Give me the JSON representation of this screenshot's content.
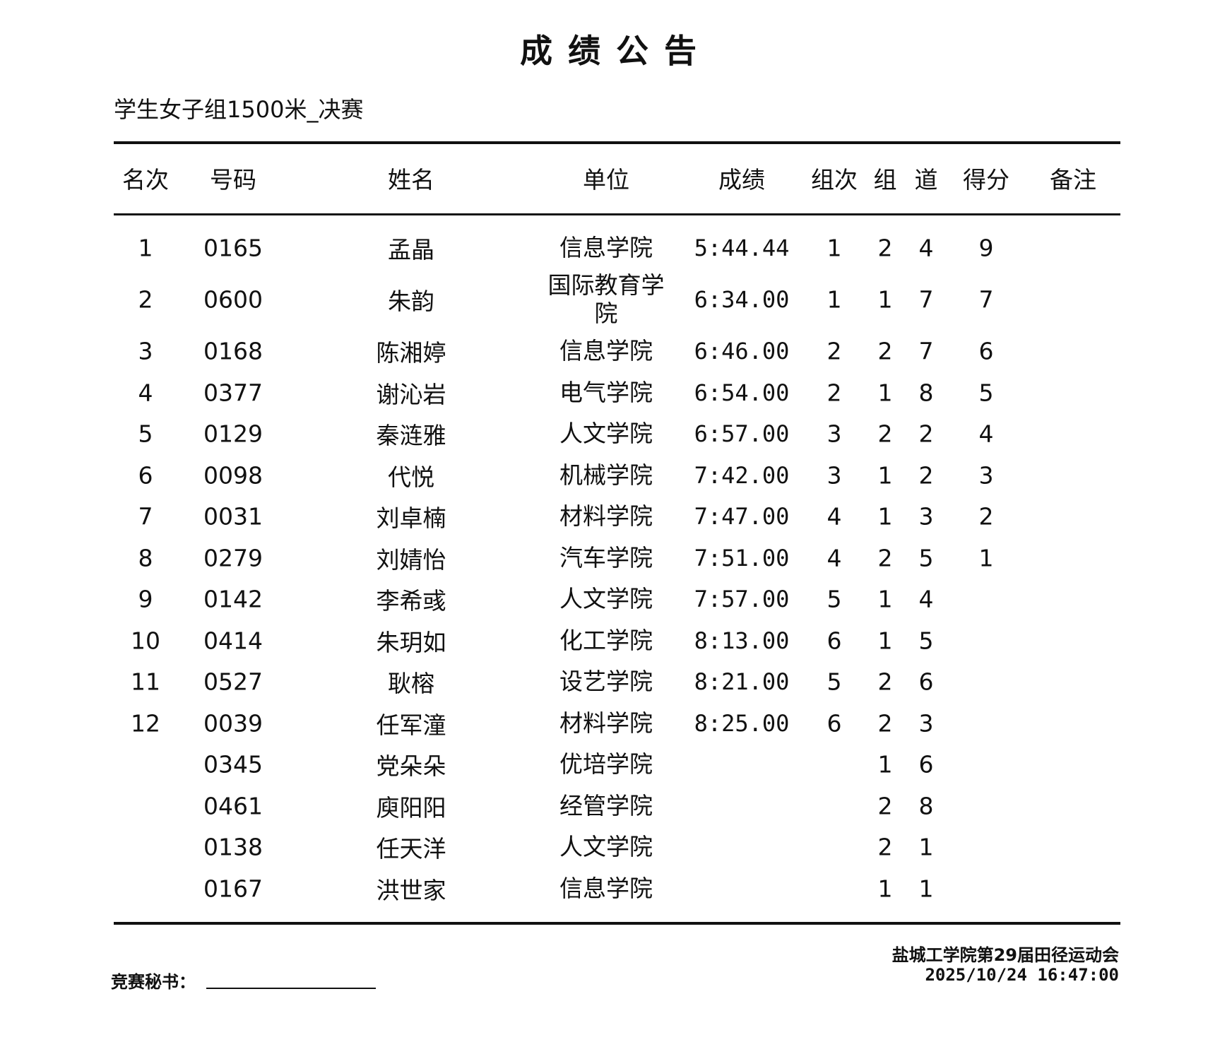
{
  "title": "成绩公告",
  "event": "学生女子组1500米_决赛",
  "headers": [
    "名次",
    "号码",
    "姓名",
    "单位",
    "成绩",
    "组次",
    "组",
    "道",
    "得分",
    "备注"
  ],
  "rows": [
    {
      "rank": "1",
      "no": "0165",
      "name": "孟晶",
      "unit": "信息学院",
      "result": "5:44.44",
      "heat": "1",
      "group": "2",
      "lane": "4",
      "score": "9",
      "note": ""
    },
    {
      "rank": "2",
      "no": "0600",
      "name": "朱韵",
      "unit": "国际教育学院",
      "result": "6:34.00",
      "heat": "1",
      "group": "1",
      "lane": "7",
      "score": "7",
      "note": ""
    },
    {
      "rank": "3",
      "no": "0168",
      "name": "陈湘婷",
      "unit": "信息学院",
      "result": "6:46.00",
      "heat": "2",
      "group": "2",
      "lane": "7",
      "score": "6",
      "note": ""
    },
    {
      "rank": "4",
      "no": "0377",
      "name": "谢沁岩",
      "unit": "电气学院",
      "result": "6:54.00",
      "heat": "2",
      "group": "1",
      "lane": "8",
      "score": "5",
      "note": ""
    },
    {
      "rank": "5",
      "no": "0129",
      "name": "秦涟雅",
      "unit": "人文学院",
      "result": "6:57.00",
      "heat": "3",
      "group": "2",
      "lane": "2",
      "score": "4",
      "note": ""
    },
    {
      "rank": "6",
      "no": "0098",
      "name": "代悦",
      "unit": "机械学院",
      "result": "7:42.00",
      "heat": "3",
      "group": "1",
      "lane": "2",
      "score": "3",
      "note": ""
    },
    {
      "rank": "7",
      "no": "0031",
      "name": "刘卓楠",
      "unit": "材料学院",
      "result": "7:47.00",
      "heat": "4",
      "group": "1",
      "lane": "3",
      "score": "2",
      "note": ""
    },
    {
      "rank": "8",
      "no": "0279",
      "name": "刘婧怡",
      "unit": "汽车学院",
      "result": "7:51.00",
      "heat": "4",
      "group": "2",
      "lane": "5",
      "score": "1",
      "note": ""
    },
    {
      "rank": "9",
      "no": "0142",
      "name": "李希彧",
      "unit": "人文学院",
      "result": "7:57.00",
      "heat": "5",
      "group": "1",
      "lane": "4",
      "score": "",
      "note": ""
    },
    {
      "rank": "10",
      "no": "0414",
      "name": "朱玥如",
      "unit": "化工学院",
      "result": "8:13.00",
      "heat": "6",
      "group": "1",
      "lane": "5",
      "score": "",
      "note": ""
    },
    {
      "rank": "11",
      "no": "0527",
      "name": "耿榕",
      "unit": "设艺学院",
      "result": "8:21.00",
      "heat": "5",
      "group": "2",
      "lane": "6",
      "score": "",
      "note": ""
    },
    {
      "rank": "12",
      "no": "0039",
      "name": "任军潼",
      "unit": "材料学院",
      "result": "8:25.00",
      "heat": "6",
      "group": "2",
      "lane": "3",
      "score": "",
      "note": ""
    },
    {
      "rank": "",
      "no": "0345",
      "name": "党朵朵",
      "unit": "优培学院",
      "result": "",
      "heat": "",
      "group": "1",
      "lane": "6",
      "score": "",
      "note": ""
    },
    {
      "rank": "",
      "no": "0461",
      "name": "庾阳阳",
      "unit": "经管学院",
      "result": "",
      "heat": "",
      "group": "2",
      "lane": "8",
      "score": "",
      "note": ""
    },
    {
      "rank": "",
      "no": "0138",
      "name": "任天洋",
      "unit": "人文学院",
      "result": "",
      "heat": "",
      "group": "2",
      "lane": "1",
      "score": "",
      "note": ""
    },
    {
      "rank": "",
      "no": "0167",
      "name": "洪世家",
      "unit": "信息学院",
      "result": "",
      "heat": "",
      "group": "1",
      "lane": "1",
      "score": "",
      "note": ""
    }
  ],
  "footer": {
    "secretary_label": "竞赛秘书：",
    "organizer": "盐城工学院第29届田径运动会",
    "datetime": "2025/10/24 16:47:00"
  }
}
